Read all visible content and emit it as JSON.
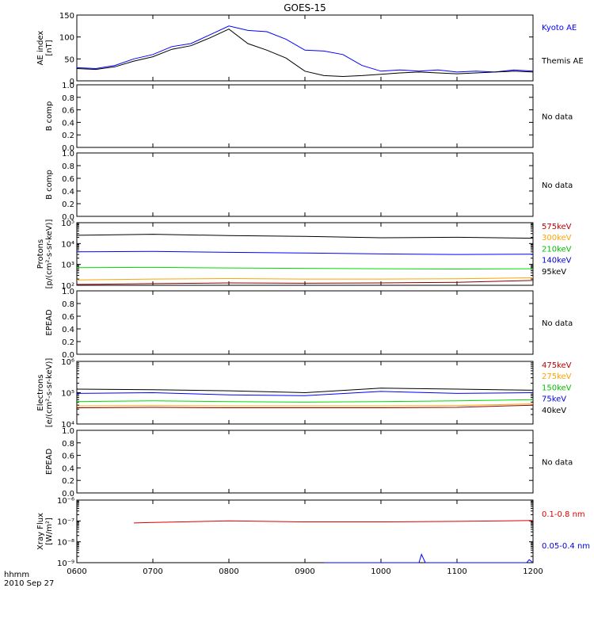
{
  "title": "GOES-15",
  "colors": {
    "axis": "#000000",
    "black": "#000000",
    "blue": "#0000ff",
    "green": "#00dd00",
    "orange": "#ffa500",
    "red": "#c80000",
    "xray_red": "#dd0000",
    "darkred": "#880000",
    "label_red": "#bb0000",
    "label_orange": "#ffa500",
    "label_green": "#00c000",
    "label_blue": "#0000dd"
  },
  "time_axis": {
    "ticks": [
      "0600",
      "0700",
      "0800",
      "0900",
      "1000",
      "1100",
      "1200"
    ],
    "unit_label": "hhmm",
    "date_label": "2010 Sep 27"
  },
  "chart_data": [
    {
      "type": "line",
      "ylabel": [
        "AE index",
        "[nT]"
      ],
      "yscale": "linear",
      "ylim": [
        0,
        150
      ],
      "yticks": [
        "0",
        "50",
        "100",
        "150"
      ],
      "xlim": [
        "0600",
        "1200"
      ],
      "series": [
        {
          "name": "Kyoto AE",
          "color": "blue",
          "x": [
            "0600",
            "0615",
            "0630",
            "0645",
            "0700",
            "0715",
            "0730",
            "0745",
            "0800",
            "0815",
            "0830",
            "0845",
            "0900",
            "0915",
            "0930",
            "0945",
            "1000",
            "1015",
            "1030",
            "1045",
            "1100",
            "1115",
            "1130",
            "1145",
            "1200"
          ],
          "y": [
            30,
            28,
            35,
            50,
            60,
            78,
            85,
            105,
            125,
            115,
            112,
            95,
            70,
            68,
            60,
            35,
            22,
            25,
            22,
            25,
            20,
            22,
            20,
            25,
            22
          ]
        },
        {
          "name": "Themis AE",
          "color": "black",
          "x": [
            "0600",
            "0615",
            "0630",
            "0645",
            "0700",
            "0715",
            "0730",
            "0745",
            "0800",
            "0815",
            "0830",
            "0845",
            "0900",
            "0915",
            "0930",
            "0945",
            "1000",
            "1015",
            "1030",
            "1045",
            "1100",
            "1115",
            "1130",
            "1145",
            "1200"
          ],
          "y": [
            28,
            26,
            32,
            45,
            55,
            72,
            80,
            98,
            118,
            85,
            70,
            52,
            22,
            12,
            10,
            12,
            15,
            18,
            20,
            18,
            16,
            18,
            20,
            22,
            20
          ]
        }
      ]
    },
    {
      "type": "line",
      "ylabel": [
        "B comp"
      ],
      "yscale": "linear",
      "ylim": [
        0,
        1.0
      ],
      "yticks": [
        "0.0",
        "0.2",
        "0.4",
        "0.6",
        "0.8",
        "1.0"
      ],
      "status": "No data"
    },
    {
      "type": "line",
      "ylabel": [
        "B comp"
      ],
      "yscale": "linear",
      "ylim": [
        0,
        1.0
      ],
      "yticks": [
        "0.0",
        "0.2",
        "0.4",
        "0.6",
        "0.8",
        "1.0"
      ],
      "status": "No data"
    },
    {
      "type": "line",
      "ylabel": [
        "Protons",
        "[p/(cm²-s-sr-keV)]"
      ],
      "yscale": "log",
      "ylim": [
        100,
        100000
      ],
      "yticks": [
        "10²",
        "10³",
        "10⁴",
        "10⁵"
      ],
      "series": [
        {
          "name": "575keV",
          "color": "darkred",
          "label_color": "label_red",
          "x": [
            "0600",
            "0700",
            "0800",
            "0900",
            "1000",
            "1100",
            "1200"
          ],
          "y": [
            110,
            120,
            130,
            125,
            130,
            140,
            170
          ]
        },
        {
          "name": "300keV",
          "color": "orange",
          "label_color": "label_orange",
          "x": [
            "0600",
            "0700",
            "0800",
            "0900",
            "1000",
            "1100",
            "1200"
          ],
          "y": [
            180,
            200,
            210,
            200,
            200,
            205,
            230
          ]
        },
        {
          "name": "210keV",
          "color": "green",
          "label_color": "label_green",
          "x": [
            "0600",
            "0700",
            "0800",
            "0900",
            "1000",
            "1100",
            "1200"
          ],
          "y": [
            700,
            720,
            680,
            650,
            620,
            600,
            620
          ]
        },
        {
          "name": "140keV",
          "color": "blue",
          "label_color": "label_blue",
          "x": [
            "0600",
            "0700",
            "0800",
            "0900",
            "1000",
            "1100",
            "1200"
          ],
          "y": [
            4000,
            4200,
            3800,
            3500,
            3200,
            3000,
            3100
          ]
        },
        {
          "name": "95keV",
          "color": "black",
          "label_color": "black",
          "x": [
            "0600",
            "0700",
            "0800",
            "0900",
            "1000",
            "1100",
            "1200"
          ],
          "y": [
            25000,
            28000,
            24000,
            22000,
            19000,
            20000,
            18000
          ]
        }
      ]
    },
    {
      "type": "line",
      "ylabel": [
        "EPEAD"
      ],
      "yscale": "linear",
      "ylim": [
        0,
        1.0
      ],
      "yticks": [
        "0.0",
        "0.2",
        "0.4",
        "0.6",
        "0.8",
        "1.0"
      ],
      "status": "No data"
    },
    {
      "type": "line",
      "ylabel": [
        "Electrons",
        "[e/(cm²-s-sr-keV)]"
      ],
      "yscale": "log",
      "ylim": [
        10000,
        1000000
      ],
      "yticks": [
        "10⁴",
        "10⁵",
        "10⁶"
      ],
      "series": [
        {
          "name": "475keV",
          "color": "darkred",
          "label_color": "label_red",
          "x": [
            "0600",
            "0700",
            "0800",
            "0900",
            "1000",
            "1100",
            "1200"
          ],
          "y": [
            33000,
            34000,
            33000,
            33000,
            33000,
            34000,
            40000
          ]
        },
        {
          "name": "275keV",
          "color": "orange",
          "label_color": "label_orange",
          "x": [
            "0600",
            "0700",
            "0800",
            "0900",
            "1000",
            "1100",
            "1200"
          ],
          "y": [
            38000,
            39000,
            38000,
            38000,
            38000,
            39000,
            44000
          ]
        },
        {
          "name": "150keV",
          "color": "green",
          "label_color": "label_green",
          "x": [
            "0600",
            "0700",
            "0800",
            "0900",
            "1000",
            "1100",
            "1200"
          ],
          "y": [
            52000,
            55000,
            52000,
            50000,
            52000,
            55000,
            60000
          ]
        },
        {
          "name": "75keV",
          "color": "blue",
          "label_color": "label_blue",
          "x": [
            "0600",
            "0700",
            "0800",
            "0900",
            "1000",
            "1100",
            "1200"
          ],
          "y": [
            95000,
            100000,
            85000,
            80000,
            110000,
            95000,
            100000
          ]
        },
        {
          "name": "40keV",
          "color": "black",
          "label_color": "black",
          "x": [
            "0600",
            "0700",
            "0800",
            "0900",
            "1000",
            "1100",
            "1200"
          ],
          "y": [
            130000,
            125000,
            115000,
            100000,
            140000,
            130000,
            120000
          ]
        }
      ]
    },
    {
      "type": "line",
      "ylabel": [
        "EPEAD"
      ],
      "yscale": "linear",
      "ylim": [
        0,
        1.0
      ],
      "yticks": [
        "0.0",
        "0.2",
        "0.4",
        "0.6",
        "0.8",
        "1.0"
      ],
      "status": "No data"
    },
    {
      "type": "line",
      "ylabel": [
        "Xray Flux",
        "[W/m²]"
      ],
      "yscale": "log",
      "ylim": [
        1e-09,
        1e-06
      ],
      "yticks": [
        "10⁻⁹",
        "10⁻⁸",
        "10⁻⁷",
        "10⁻⁶"
      ],
      "series": [
        {
          "name": "0.1-0.8 nm",
          "color": "xray_red",
          "label_color": "xray_red",
          "x": [
            "0645",
            "0700",
            "0800",
            "0900",
            "1000",
            "1100",
            "1200"
          ],
          "y": [
            8e-08,
            8.5e-08,
            1e-07,
            9e-08,
            9e-08,
            9.5e-08,
            1.05e-07
          ]
        },
        {
          "name": "0.05-0.4 nm",
          "color": "blue",
          "label_color": "label_blue",
          "x": [
            "0915",
            "1000",
            "1030",
            "1032",
            "1035",
            "1100",
            "1155",
            "1157",
            "1200"
          ],
          "y": [
            1e-09,
            1e-09,
            1e-09,
            2.5e-09,
            1e-09,
            1e-09,
            1e-09,
            1.4e-09,
            1e-09
          ]
        }
      ]
    }
  ]
}
